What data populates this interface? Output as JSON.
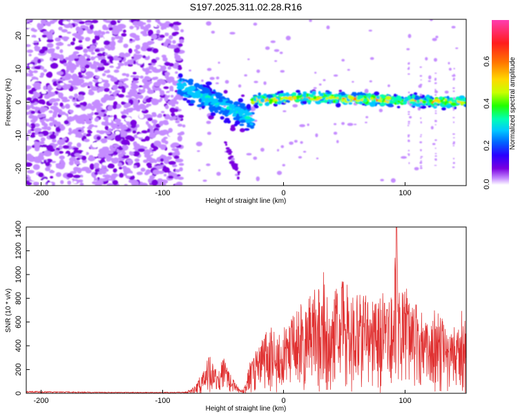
{
  "title": "S197.2025.311.02.28.R16",
  "top_panel": {
    "xlabel": "Height of straight line (km)",
    "ylabel": "Frequency (Hz)",
    "xticks": [
      "-200",
      "-100",
      "0",
      "100"
    ],
    "yticks": [
      "20",
      "10",
      "0",
      "-10",
      "-20"
    ],
    "colorbar": {
      "label": "Normalized spectral amplitude",
      "ticks": [
        "0.0",
        "0.2",
        "0.4",
        "0.6"
      ],
      "colors": [
        "#ffffff",
        "#c58cff",
        "#7a00e0",
        "#2a00ff",
        "#0066ff",
        "#00c8ff",
        "#00ffb4",
        "#22ff00",
        "#c8ff00",
        "#ffd800",
        "#ff7800",
        "#ff1c1c",
        "#ff3cb0"
      ]
    }
  },
  "bottom_panel": {
    "xlabel": "Height of straight line (km)",
    "ylabel": "SNR (10 * v/v)",
    "xticks": [
      "-200",
      "-100",
      "0",
      "100"
    ],
    "yticks": [
      "0",
      "200",
      "400",
      "600",
      "800",
      "1000",
      "1200",
      "1400"
    ],
    "line_color": "#e03030"
  },
  "chart_data": [
    {
      "type": "heatmap",
      "title": "S197.2025.311.02.28.R16",
      "xlabel": "Height of straight line (km)",
      "ylabel": "Frequency (Hz)",
      "xlim": [
        -210,
        150
      ],
      "ylim": [
        -25,
        25
      ],
      "zlabel": "Normalized spectral amplitude",
      "zlim": [
        0,
        0.8
      ],
      "description_of_signal": [
        {
          "x_range": [
            -210,
            -85
          ],
          "frequency_range": [
            -25,
            25
          ],
          "amplitude": "low, diffuse noise"
        },
        {
          "x_range": [
            -85,
            -25
          ],
          "frequency_center": [
            5,
            -5
          ],
          "amplitude": "moderate, descending track"
        },
        {
          "x_range": [
            -25,
            150
          ],
          "frequency_center": 0.5,
          "amplitude": "high, narrow band near 0 Hz"
        }
      ]
    },
    {
      "type": "line",
      "xlabel": "Height of straight line (km)",
      "ylabel": "SNR (10 * v/v)",
      "xlim": [
        -210,
        150
      ],
      "ylim": [
        0,
        1400
      ],
      "series": [
        {
          "x": [
            -210,
            -180,
            -150,
            -120,
            -100,
            -80,
            -72,
            -65,
            -60,
            -56,
            -52,
            -48,
            -44,
            -40,
            -36,
            -32,
            -28,
            -24,
            -20,
            -15,
            -10,
            -5,
            0,
            5,
            10,
            15,
            20,
            25,
            30,
            33,
            35,
            40,
            45,
            50,
            55,
            60,
            65,
            70,
            75,
            80,
            85,
            90,
            93,
            96,
            100,
            105,
            110,
            115,
            120,
            125,
            130,
            135,
            140,
            145,
            148,
            150
          ],
          "y": [
            20,
            15,
            12,
            10,
            10,
            12,
            60,
            200,
            330,
            200,
            260,
            300,
            200,
            120,
            40,
            30,
            250,
            350,
            380,
            500,
            560,
            480,
            520,
            720,
            680,
            800,
            760,
            900,
            880,
            1050,
            850,
            820,
            900,
            980,
            860,
            820,
            940,
            750,
            860,
            900,
            780,
            820,
            1430,
            760,
            960,
            700,
            820,
            640,
            560,
            730,
            650,
            490,
            560,
            600,
            830,
            620
          ]
        }
      ]
    }
  ]
}
